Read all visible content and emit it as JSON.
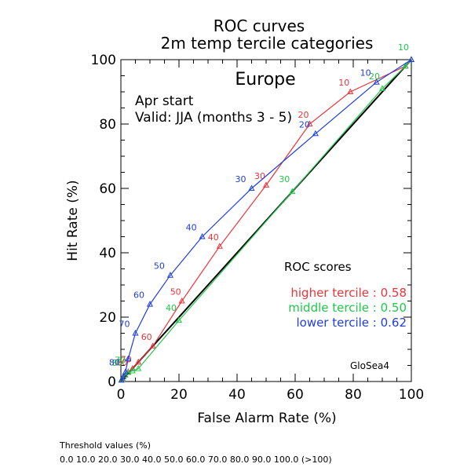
{
  "chart_data": {
    "type": "line",
    "title": "ROC curves",
    "subtitle": "2m temp tercile categories",
    "region": "Europe",
    "start_text": "Apr start",
    "valid_text": "Valid: JJA (months 3 - 5)",
    "xlabel": "False Alarm Rate (%)",
    "ylabel": "Hit Rate (%)",
    "xlim": [
      0,
      100
    ],
    "ylim": [
      0,
      100
    ],
    "xticks": [
      "0",
      "20",
      "40",
      "60",
      "80",
      "100"
    ],
    "yticks": [
      "0",
      "20",
      "40",
      "60",
      "80",
      "100"
    ],
    "grid": false,
    "diagonal": true,
    "scores_title": "ROC scores",
    "series": [
      {
        "name": "higher tercile : 0.58",
        "color": "#e8353a",
        "x": [
          0.5,
          1.5,
          2.5,
          4,
          6,
          11,
          21,
          34,
          50,
          65,
          79,
          98,
          100
        ],
        "y": [
          1,
          2,
          3,
          4,
          6,
          11,
          25,
          42,
          61,
          80,
          90,
          98,
          100
        ],
        "labels": [
          "",
          "",
          "80",
          "70",
          "",
          "60",
          "50",
          "40",
          "30",
          "20",
          "10",
          "",
          ""
        ]
      },
      {
        "name": "middle tercile : 0.50",
        "color": "#1ec94a",
        "x": [
          0.3,
          0.8,
          1.5,
          2.5,
          4,
          6,
          20,
          59,
          90,
          98,
          100
        ],
        "y": [
          0.6,
          1.5,
          2.0,
          2.8,
          3.3,
          4,
          19,
          59,
          91,
          98,
          100
        ],
        "labels": [
          "",
          "",
          "80",
          "70",
          "",
          "",
          "40",
          "30",
          "20",
          "",
          "10"
        ]
      },
      {
        "name": "lower tercile : 0.62",
        "color": "#1f3ee0",
        "x": [
          0.2,
          0.8,
          1.6,
          2.5,
          5,
          10,
          17,
          28,
          45,
          67,
          88,
          100
        ],
        "y": [
          0.4,
          1.5,
          3.0,
          7,
          15,
          24,
          33,
          45,
          60,
          77,
          93,
          100
        ],
        "labels": [
          "",
          "",
          "80",
          "",
          "70",
          "60",
          "50",
          "40",
          "30",
          "20",
          "10",
          ""
        ]
      }
    ],
    "annotation": "GloSea4",
    "threshold_title": "Threshold values (%)",
    "threshold_values": "0.0 10.0 20.0 30.0 40.0 50.0 60.0 70.0 80.0 90.0 100.0 (>100)"
  }
}
